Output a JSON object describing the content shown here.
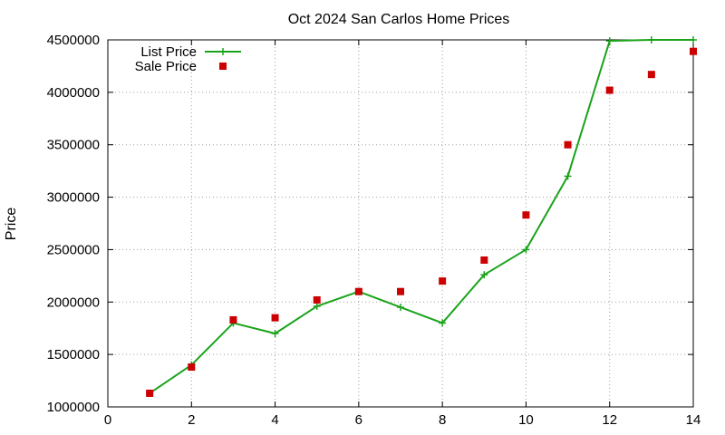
{
  "chart_data": {
    "type": "line",
    "title": "Oct 2024 San Carlos Home Prices",
    "xlabel": "",
    "ylabel": "Price",
    "xlim": [
      0,
      14
    ],
    "ylim": [
      1000000,
      4500000
    ],
    "xticks": [
      0,
      2,
      4,
      6,
      8,
      10,
      12,
      14
    ],
    "yticks": [
      1000000,
      1500000,
      2000000,
      2500000,
      3000000,
      3500000,
      4000000,
      4500000
    ],
    "grid": true,
    "legend_position": "top-left",
    "series": [
      {
        "name": "List Price",
        "style": "line+cross",
        "color": "#1aa31a",
        "x": [
          1,
          2,
          3,
          4,
          5,
          6,
          7,
          8,
          9,
          10,
          11,
          12,
          13,
          14
        ],
        "y": [
          1130000,
          1400000,
          1800000,
          1700000,
          1960000,
          2100000,
          1950000,
          1800000,
          2260000,
          2500000,
          3200000,
          4490000,
          4500000,
          4500000
        ]
      },
      {
        "name": "Sale Price",
        "style": "square",
        "color": "#cc0000",
        "x": [
          1,
          2,
          3,
          4,
          5,
          6,
          7,
          8,
          9,
          10,
          11,
          12,
          13,
          14
        ],
        "y": [
          1130000,
          1380000,
          1830000,
          1850000,
          2020000,
          2100000,
          2100000,
          2200000,
          2400000,
          2830000,
          3500000,
          4020000,
          4170000,
          4390000
        ]
      }
    ]
  }
}
